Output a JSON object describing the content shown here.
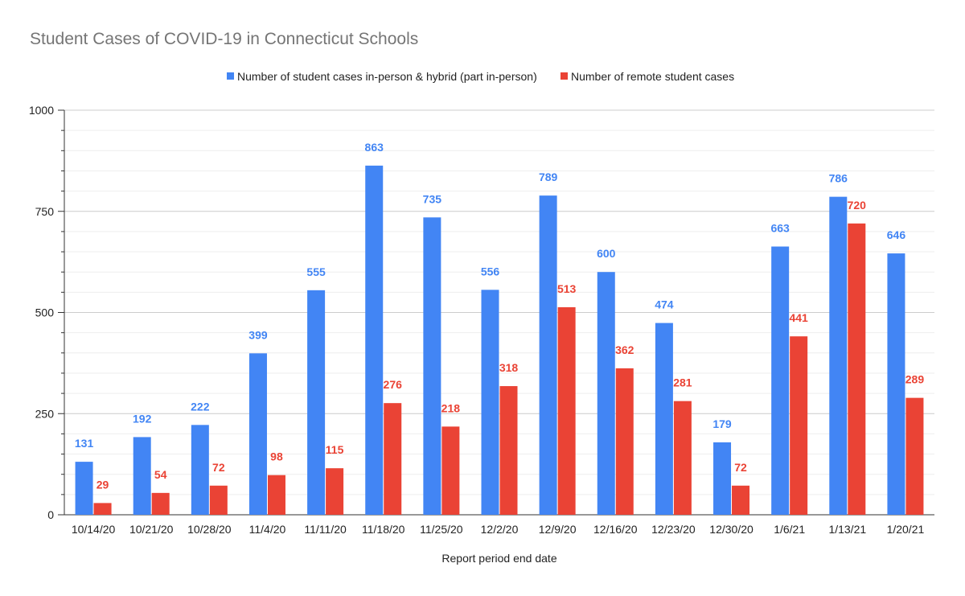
{
  "chart_data": {
    "type": "bar",
    "title": "Student Cases of COVID-19 in Connecticut Schools",
    "xlabel": "Report period end date",
    "ylabel": "",
    "ylim": [
      0,
      1000
    ],
    "yticks": [
      0,
      250,
      500,
      750,
      1000
    ],
    "grid": true,
    "legend_position": "top",
    "categories": [
      "10/14/20",
      "10/21/20",
      "10/28/20",
      "11/4/20",
      "11/11/20",
      "11/18/20",
      "11/25/20",
      "12/2/20",
      "12/9/20",
      "12/16/20",
      "12/23/20",
      "12/30/20",
      "1/6/21",
      "1/13/21",
      "1/20/21"
    ],
    "series": [
      {
        "name": "Number of student cases in-person & hybrid (part in-person)",
        "color": "#4285f4",
        "values": [
          131,
          192,
          222,
          399,
          555,
          863,
          735,
          556,
          789,
          600,
          474,
          179,
          663,
          786,
          646
        ]
      },
      {
        "name": "Number of remote student cases",
        "color": "#ea4335",
        "values": [
          29,
          54,
          72,
          98,
          115,
          276,
          218,
          318,
          513,
          362,
          281,
          72,
          441,
          720,
          289
        ]
      }
    ]
  }
}
